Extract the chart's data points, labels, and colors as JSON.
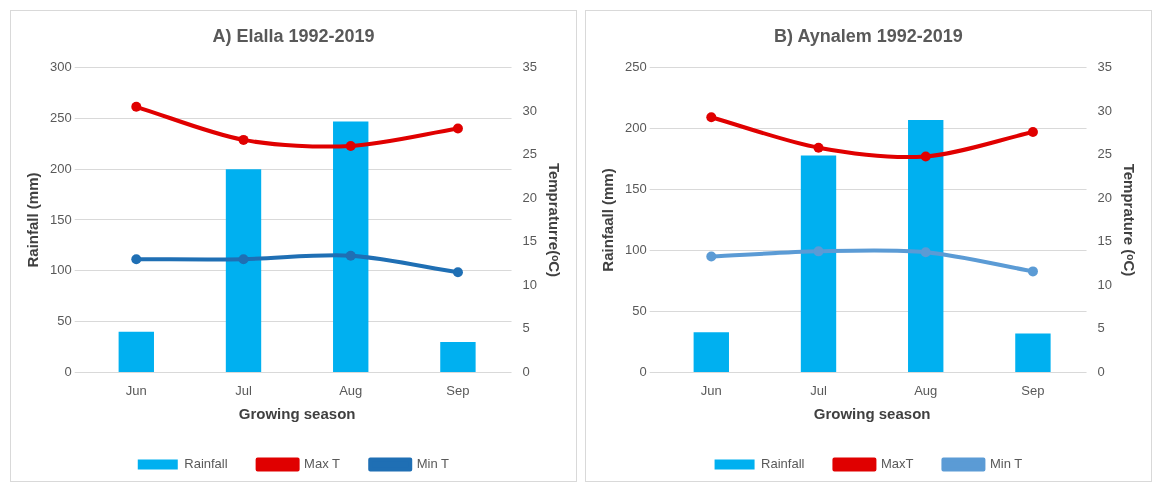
{
  "chart_data": [
    {
      "type": "bar",
      "title": "A) Elalla 1992-2019",
      "xlabel": "Growing season",
      "ylabel": "Rainfall (mm)",
      "y2label": "Tempraturre(ᵒC)",
      "categories": [
        "Jun",
        "Jul",
        "Aug",
        "Sep"
      ],
      "ylim": [
        0,
        300
      ],
      "yticks": [
        0,
        50,
        100,
        150,
        200,
        250,
        300
      ],
      "y2lim": [
        0,
        35
      ],
      "y2ticks": [
        0,
        5,
        10,
        15,
        20,
        25,
        30,
        35
      ],
      "grid": "y",
      "legend": "bottom",
      "marker": "circle",
      "series": [
        {
          "name": "Rainfall",
          "color": "#00b0f0",
          "values": [
            40,
            200,
            247,
            30
          ]
        },
        {
          "name": "Max T",
          "type": "line",
          "axis": "y2",
          "color": "#e00000",
          "values": [
            30.5,
            26.7,
            26,
            28
          ]
        },
        {
          "name": "Min T",
          "type": "line",
          "axis": "y2",
          "color": "#1f6fb4",
          "values": [
            13,
            13,
            13.4,
            11.5
          ]
        }
      ]
    },
    {
      "type": "bar",
      "title": "B) Aynalem 1992-2019",
      "xlabel": "Growing season",
      "ylabel": "Rainfaall (mm)",
      "y2label": "Temprature (ᵒC)",
      "categories": [
        "Jun",
        "Jul",
        "Aug",
        "Sep"
      ],
      "ylim": [
        0,
        250
      ],
      "yticks": [
        0,
        50,
        100,
        150,
        200,
        250
      ],
      "y2lim": [
        0,
        35
      ],
      "y2ticks": [
        0,
        5,
        10,
        15,
        20,
        25,
        30,
        35
      ],
      "grid": "y",
      "legend": "bottom",
      "marker": "circle",
      "series": [
        {
          "name": "Rainfall",
          "color": "#00b0f0",
          "values": [
            33,
            178,
            207,
            32
          ]
        },
        {
          "name": "MaxT",
          "type": "line",
          "axis": "y2",
          "color": "#e00000",
          "values": [
            29.3,
            25.8,
            24.8,
            27.6
          ]
        },
        {
          "name": "Min T",
          "type": "line",
          "axis": "y2",
          "color": "#5b9bd5",
          "values": [
            13.3,
            13.9,
            13.8,
            11.6
          ]
        }
      ]
    }
  ]
}
